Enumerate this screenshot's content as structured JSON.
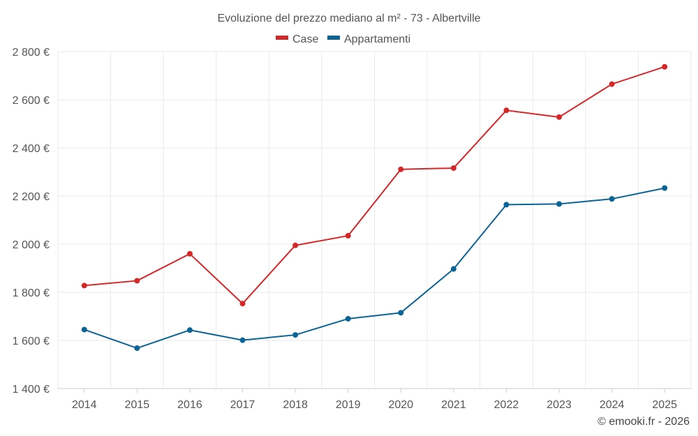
{
  "chart_data": {
    "type": "line",
    "title": "Evoluzione del prezzo mediano al m² - 73 - Albertville",
    "categories": [
      "2014",
      "2015",
      "2016",
      "2017",
      "2018",
      "2019",
      "2020",
      "2021",
      "2022",
      "2023",
      "2024",
      "2025"
    ],
    "series": [
      {
        "name": "Case",
        "color": "#d62728",
        "values": [
          1828,
          1848,
          1960,
          1753,
          1995,
          2035,
          2311,
          2316,
          2556,
          2528,
          2665,
          2737
        ]
      },
      {
        "name": "Appartamenti",
        "color": "#0a6496",
        "values": [
          1645,
          1568,
          1643,
          1601,
          1623,
          1690,
          1715,
          1897,
          2164,
          2167,
          2188,
          2233
        ]
      }
    ],
    "ylim": [
      1400,
      2800
    ],
    "ytick_values": [
      1400,
      1600,
      1800,
      2000,
      2200,
      2400,
      2600,
      2800
    ],
    "ytick_labels": [
      "1 400 €",
      "1 600 €",
      "1 800 €",
      "2 000 €",
      "2 200 €",
      "2 400 €",
      "2 600 €",
      "2 800 €"
    ],
    "xlabel": "",
    "ylabel": "",
    "legend_position": "top-center",
    "grid": true
  },
  "credit": "© emooki.fr - 2026"
}
